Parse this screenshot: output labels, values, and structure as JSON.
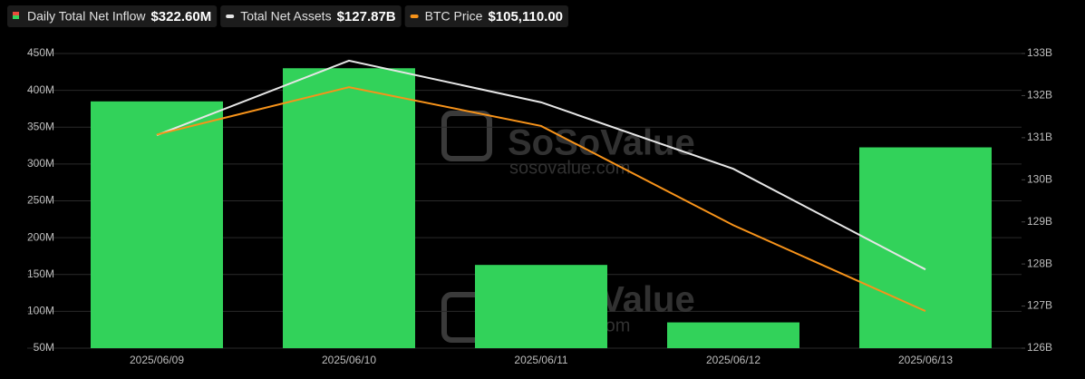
{
  "chart_data": {
    "type": "bar-line",
    "categories": [
      "2025/06/09",
      "2025/06/10",
      "2025/06/11",
      "2025/06/12",
      "2025/06/13"
    ],
    "series": [
      {
        "name": "Daily Total Net Inflow",
        "legend_value": "$322.60M",
        "color": "#32d25a",
        "type": "bar",
        "axis": "y",
        "values": [
          385,
          430,
          163,
          85,
          322.6
        ]
      },
      {
        "name": "Total Net Assets",
        "legend_value": "$127.87B",
        "color": "#e6e6e6",
        "type": "line",
        "axis": "y2",
        "values": [
          131.06,
          132.83,
          131.84,
          130.26,
          127.87
        ]
      },
      {
        "name": "BTC Price",
        "legend_value": "$105,110.00",
        "color": "#f7931a",
        "type": "line",
        "axis": "y3",
        "values": [
          109200,
          110300,
          109400,
          107100,
          105110
        ]
      }
    ],
    "ylim": [
      50,
      450
    ],
    "yticks": [
      {
        "value": 50,
        "label": "50M"
      },
      {
        "value": 100,
        "label": "100M"
      },
      {
        "value": 150,
        "label": "150M"
      },
      {
        "value": 200,
        "label": "200M"
      },
      {
        "value": 250,
        "label": "250M"
      },
      {
        "value": 300,
        "label": "300M"
      },
      {
        "value": 350,
        "label": "350M"
      },
      {
        "value": 400,
        "label": "400M"
      },
      {
        "value": 450,
        "label": "450M"
      }
    ],
    "y2lim": [
      126,
      133
    ],
    "y2ticks": [
      {
        "value": 126,
        "label": "126B"
      },
      {
        "value": 127,
        "label": "127B"
      },
      {
        "value": 128,
        "label": "128B"
      },
      {
        "value": 129,
        "label": "129B"
      },
      {
        "value": 130,
        "label": "130B"
      },
      {
        "value": 131,
        "label": "131B"
      },
      {
        "value": 132,
        "label": "132B"
      },
      {
        "value": 133,
        "label": "133B"
      }
    ],
    "y3lim": [
      104250,
      111080
    ],
    "grid": true,
    "watermark": {
      "brand": "SoSoValue",
      "site": "sosovalue.com"
    }
  }
}
